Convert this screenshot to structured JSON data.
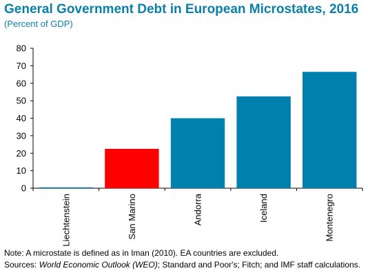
{
  "chart_data": {
    "type": "bar",
    "title": "General Government Debt in European Microstates, 2016",
    "subtitle": "(Percent of GDP)",
    "categories": [
      "Liechtenstein",
      "San Marino",
      "Andorra",
      "Iceland",
      "Montenegro"
    ],
    "values": [
      0.5,
      22.5,
      40,
      52.5,
      66.5
    ],
    "highlight_category": "San Marino",
    "ylim": [
      0,
      80
    ],
    "yticks": [
      0,
      10,
      20,
      30,
      40,
      50,
      60,
      70,
      80
    ],
    "grid": false,
    "xlabel": "",
    "ylabel": "",
    "colors": {
      "default": "#0081ad",
      "highlight": "#ff0000",
      "title": "#0b7fa8"
    }
  },
  "notes": {
    "note": "Note: A microstate is defined as in Iman (2010). EA countries are excluded.",
    "source_prefix": "Sources: ",
    "source_italic": "World Economic Outlook (WEO)",
    "source_rest": "; Standard and Poor's; Fitch; and IMF staff calculations."
  }
}
